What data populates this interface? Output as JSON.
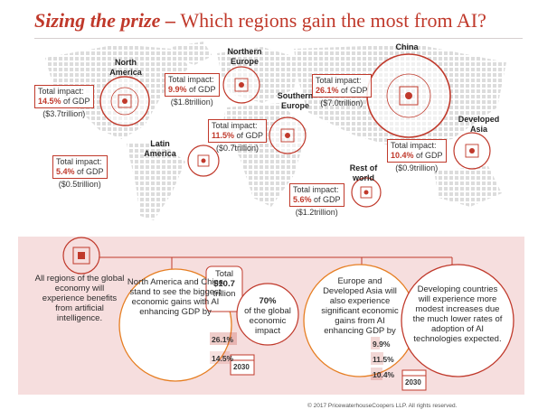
{
  "header": {
    "title_lead": "Sizing the prize",
    "title_dash": " – ",
    "title_rest": "Which regions gain the most from AI?"
  },
  "regions": {
    "north_america": {
      "name": "North\nAmerica",
      "total_label": "Total impact:",
      "pct": "14.5%",
      "of": " of GDP",
      "amount": "($3.7trillion)"
    },
    "northern_europe": {
      "name": "Northern\nEurope",
      "total_label": "Total impact:",
      "pct": "9.9%",
      "of": " of GDP",
      "amount": "($1.8trillion)"
    },
    "southern_europe": {
      "name": "Southern\nEurope",
      "total_label": "Total impact:",
      "pct": "11.5%",
      "of": " of GDP",
      "amount": "($0.7trillion)"
    },
    "china": {
      "name": "China",
      "total_label": "Total impact:",
      "pct": "26.1%",
      "of": " of GDP",
      "amount": "($7.0trillion)"
    },
    "developed_asia": {
      "name": "Developed\nAsia",
      "total_label": "Total impact:",
      "pct": "10.4%",
      "of": " of GDP",
      "amount": "($0.9trillion)"
    },
    "latin_america": {
      "name": "Latin\nAmerica",
      "total_label": "Total impact:",
      "pct": "5.4%",
      "of": " of GDP",
      "amount": "($0.5trillion)"
    },
    "rest_of_world": {
      "name": "Rest of\nworld",
      "total_label": "Total impact:",
      "pct": "5.6%",
      "of": " of GDP",
      "amount": "($1.2trillion)"
    }
  },
  "panel": {
    "intro": "All regions of the global economy will experience benefits from artificial intelligence.",
    "na_china": "North America and China stand to see the biggest economic gains with AI enhancing GDP by",
    "total_line1": "Total",
    "total_value": "$10.7",
    "total_line3": "trillion",
    "share_value": "70%",
    "share_text": "of the global economic impact",
    "eu_asia": "Europe and Developed Asia will also experience significant economic gains from AI enhancing GDP by",
    "developing": "Developing countries will experience more modest increases due the much lower rates of adoption of AI technologies expected.",
    "na_pcts": [
      "26.1%",
      "14.5%"
    ],
    "eu_pcts": [
      "9.9%",
      "11.5%",
      "10.4%"
    ],
    "year": "2030"
  },
  "footer": {
    "copyright": "© 2017 PricewaterhouseCoopers LLP. All rights reserved."
  },
  "colors": {
    "accent": "#c0392b",
    "panel_bg": "#f6dede",
    "map_dots": "#d9d9d9"
  }
}
